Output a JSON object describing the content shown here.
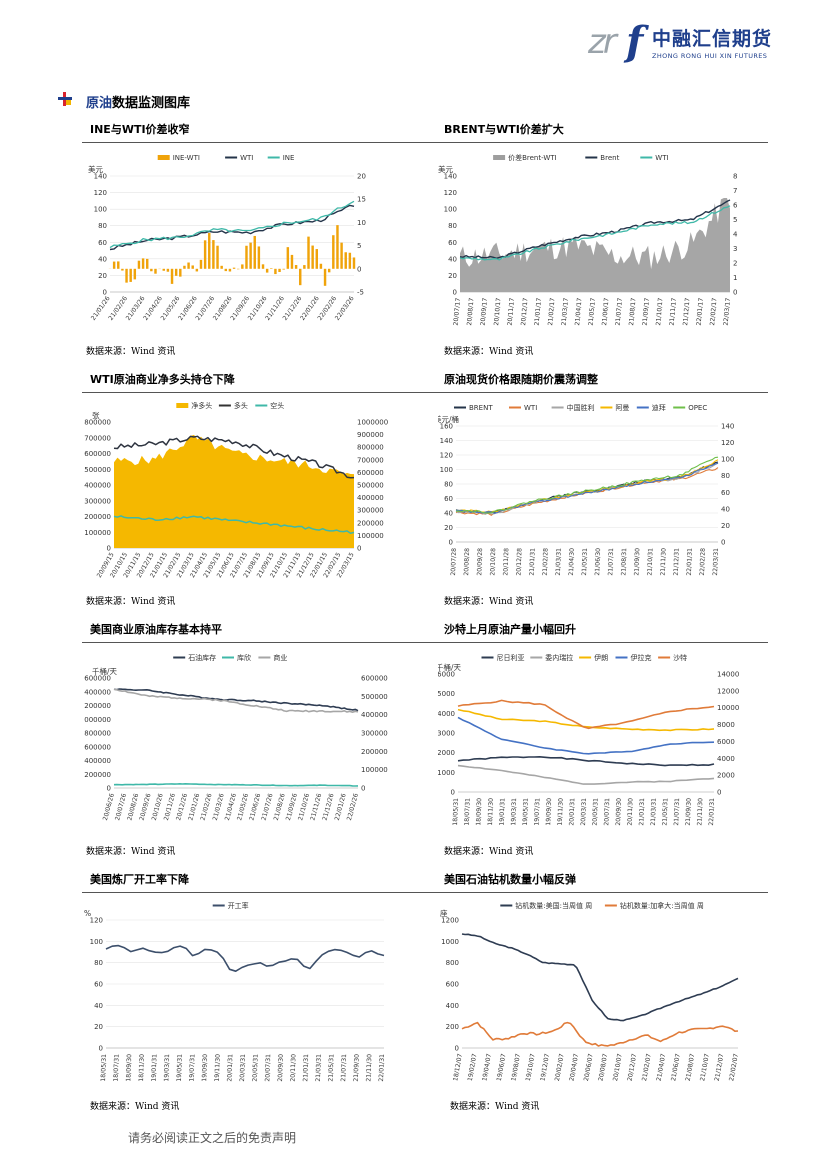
{
  "header": {
    "logo_latin": "zr",
    "logo_f": "f",
    "logo_cn": "中融汇信期货",
    "logo_en": "ZHONG RONG HUI XIN FUTURES"
  },
  "section": {
    "title_highlight": "原油",
    "title_rest": "数据监测图库"
  },
  "charts": {
    "c1": {
      "title": "INE与WTI价差收窄",
      "unit": "美元",
      "legend": [
        "INE-WTI",
        "WTI",
        "INE"
      ],
      "source": "数据来源：Wind 资讯",
      "yl": [
        "0",
        "20",
        "40",
        "60",
        "80",
        "100",
        "120",
        "140"
      ],
      "yr": [
        "-5",
        "0",
        "5",
        "10",
        "15",
        "20"
      ],
      "xt": [
        "21/01/26",
        "21/02/26",
        "21/03/26",
        "21/04/26",
        "21/05/26",
        "21/06/26",
        "21/07/26",
        "21/08/26",
        "21/09/26",
        "21/10/26",
        "21/11/26",
        "21/12/26",
        "22/01/26",
        "22/02/26",
        "22/03/26"
      ]
    },
    "c2": {
      "title": "BRENT与WTI价差扩大",
      "unit": "美元",
      "legend": [
        "价差Brent-WTI",
        "Brent",
        "WTI"
      ],
      "source": "数据来源：Wind 资讯",
      "yl": [
        "0",
        "20",
        "40",
        "60",
        "80",
        "100",
        "120",
        "140"
      ],
      "yr": [
        "0",
        "1",
        "2",
        "3",
        "4",
        "5",
        "6",
        "7",
        "8"
      ],
      "xt": [
        "20/07/17",
        "20/08/17",
        "20/09/17",
        "20/10/17",
        "20/11/17",
        "20/12/17",
        "21/01/17",
        "21/02/17",
        "21/03/17",
        "21/04/17",
        "21/05/17",
        "21/06/17",
        "21/07/17",
        "21/08/17",
        "21/09/17",
        "21/10/17",
        "21/11/17",
        "21/12/17",
        "22/01/17",
        "22/02/17",
        "22/03/17"
      ]
    },
    "c3": {
      "title": "WTI原油商业净多头持仓下降",
      "unit": "张",
      "legend": [
        "净多头",
        "多头",
        "空头"
      ],
      "source": "数据来源：Wind 资讯",
      "yl": [
        "0",
        "100000",
        "200000",
        "300000",
        "400000",
        "500000",
        "600000",
        "700000",
        "800000"
      ],
      "yr": [
        "0",
        "100000",
        "200000",
        "300000",
        "400000",
        "500000",
        "600000",
        "700000",
        "800000",
        "900000",
        "1000000"
      ],
      "xt": [
        "20/09/15",
        "20/10/15",
        "20/11/15",
        "20/12/15",
        "21/01/15",
        "21/02/15",
        "21/03/15",
        "21/04/15",
        "21/05/15",
        "21/06/15",
        "21/07/15",
        "21/08/15",
        "21/09/15",
        "21/10/15",
        "21/11/15",
        "21/12/15",
        "22/01/15",
        "22/02/15",
        "22/03/15"
      ]
    },
    "c4": {
      "title": "原油现货价格跟随期价震荡调整",
      "unit": "美元/桶",
      "legend": [
        "BRENT",
        "WTI",
        "中国胜利",
        "阿曼",
        "迪拜",
        "OPEC"
      ],
      "source": "数据来源：Wind 资讯",
      "yl": [
        "0",
        "20",
        "40",
        "60",
        "80",
        "100",
        "120",
        "140",
        "160"
      ],
      "yr": [
        "0",
        "20",
        "40",
        "60",
        "80",
        "100",
        "120",
        "140"
      ],
      "xt": [
        "20/07/28",
        "20/08/28",
        "20/09/28",
        "20/10/28",
        "20/11/28",
        "20/12/28",
        "21/01/31",
        "21/02/28",
        "21/03/31",
        "21/04/30",
        "21/05/31",
        "21/06/30",
        "21/07/31",
        "21/08/31",
        "21/09/30",
        "21/10/31",
        "21/11/30",
        "21/12/31",
        "22/01/31",
        "22/02/28",
        "22/03/31"
      ]
    },
    "c5": {
      "title": "美国商业原油库存基本持平",
      "unit": "千桶/天",
      "legend": [
        "石油库存",
        "库欣",
        "商业"
      ],
      "source": "数据来源：Wind 资讯",
      "yl": [
        "0",
        "200000",
        "400000",
        "600000",
        "800000",
        "1000000",
        "1200000",
        "1400000",
        "1600000"
      ],
      "yr": [
        "0",
        "100000",
        "200000",
        "300000",
        "400000",
        "500000",
        "600000"
      ],
      "xt": [
        "20/06/26",
        "20/07/26",
        "20/08/26",
        "20/09/26",
        "20/10/26",
        "20/11/26",
        "20/12/26",
        "21/01/26",
        "21/02/26",
        "21/03/26",
        "21/04/26",
        "21/05/26",
        "21/06/26",
        "21/07/26",
        "21/08/26",
        "21/09/26",
        "21/10/26",
        "21/11/26",
        "21/12/26",
        "22/01/26",
        "22/02/26"
      ]
    },
    "c6": {
      "title": "沙特上月原油产量小幅回升",
      "unit": "千桶/天",
      "legend": [
        "尼日利亚",
        "委内瑞拉",
        "伊朗",
        "伊拉克",
        "沙特"
      ],
      "source": "数据来源：Wind 资讯",
      "yl": [
        "0",
        "1000",
        "2000",
        "3000",
        "4000",
        "5000",
        "6000"
      ],
      "yr": [
        "0",
        "2000",
        "4000",
        "6000",
        "8000",
        "10000",
        "12000",
        "14000"
      ],
      "xt": [
        "18/05/31",
        "18/07/31",
        "18/09/30",
        "18/11/30",
        "19/01/31",
        "19/03/31",
        "19/05/31",
        "19/07/31",
        "19/09/30",
        "19/11/30",
        "20/01/31",
        "20/03/31",
        "20/05/31",
        "20/07/31",
        "20/09/30",
        "20/11/30",
        "21/01/31",
        "21/03/31",
        "21/05/31",
        "21/07/31",
        "21/09/30",
        "21/11/30",
        "22/01/31"
      ]
    },
    "c7": {
      "title": "美国炼厂开工率下降",
      "unit": "%",
      "legend": [
        "开工率"
      ],
      "source": "数据来源：Wind 资讯",
      "yl": [
        "0",
        "20",
        "40",
        "60",
        "80",
        "100",
        "120"
      ],
      "xt": [
        "18/05/31",
        "18/07/31",
        "18/09/30",
        "18/11/30",
        "19/01/31",
        "19/03/31",
        "19/05/31",
        "19/07/31",
        "19/09/30",
        "19/11/30",
        "20/01/31",
        "20/03/31",
        "20/05/31",
        "20/07/31",
        "20/09/30",
        "20/11/30",
        "21/01/31",
        "21/03/31",
        "21/05/31",
        "21/07/31",
        "21/09/30",
        "21/11/30",
        "22/01/31"
      ]
    },
    "c8": {
      "title": "美国石油钻机数量小幅反弹",
      "unit": "座",
      "legend": [
        "钻机数量:美国:当周值 周",
        "钻机数量:加拿大:当周值 周"
      ],
      "source": "数据来源：Wind 资讯",
      "yl": [
        "0",
        "200",
        "400",
        "600",
        "800",
        "1000",
        "1200"
      ],
      "xt": [
        "18/12/07",
        "19/02/07",
        "19/04/07",
        "19/06/07",
        "19/08/07",
        "19/10/07",
        "19/12/07",
        "20/02/07",
        "20/04/07",
        "20/06/07",
        "20/08/07",
        "20/10/07",
        "20/12/07",
        "21/02/07",
        "21/04/07",
        "21/06/07",
        "21/08/07",
        "21/10/07",
        "21/12/07",
        "22/02/07"
      ]
    }
  },
  "footer": "请务必阅读正文之后的免责声明",
  "chart_data": [
    {
      "type": "line",
      "title": "INE与WTI价差收窄",
      "ylabel": "美元",
      "ylim": [
        0,
        140
      ],
      "y2lim": [
        -5,
        20
      ],
      "x": [
        "21/01/26",
        "21/03/26",
        "21/05/26",
        "21/07/26",
        "21/09/26",
        "21/11/26",
        "22/01/26",
        "22/03/26"
      ],
      "series": [
        {
          "name": "WTI",
          "values": [
            52,
            62,
            66,
            73,
            72,
            82,
            86,
            105
          ]
        },
        {
          "name": "INE",
          "values": [
            54,
            63,
            66,
            75,
            73,
            83,
            88,
            110
          ]
        },
        {
          "name": "INE-WTI",
          "values": [
            2,
            1,
            -1,
            3,
            1,
            8,
            0,
            6
          ]
        }
      ]
    },
    {
      "type": "area",
      "title": "BRENT与WTI价差扩大",
      "ylabel": "美元",
      "ylim": [
        0,
        140
      ],
      "y2lim": [
        0,
        8
      ],
      "x": [
        "20/07/17",
        "20/10/17",
        "21/01/17",
        "21/04/17",
        "21/07/17",
        "21/10/17",
        "22/01/17",
        "22/03/17"
      ],
      "series": [
        {
          "name": "Brent",
          "values": [
            43,
            41,
            55,
            66,
            73,
            84,
            87,
            110
          ]
        },
        {
          "name": "WTI",
          "values": [
            41,
            39,
            52,
            63,
            71,
            82,
            84,
            104
          ]
        },
        {
          "name": "价差Brent-WTI",
          "values": [
            2.4,
            2.6,
            3.0,
            3.2,
            2.5,
            2.4,
            3.3,
            6.5
          ]
        }
      ]
    },
    {
      "type": "area",
      "title": "WTI原油商业净多头持仓下降",
      "ylabel": "张",
      "ylim": [
        0,
        800000
      ],
      "y2lim": [
        0,
        1000000
      ],
      "x": [
        "20/09/15",
        "20/12/15",
        "21/03/15",
        "21/06/15",
        "21/09/15",
        "21/12/15",
        "22/03/15"
      ],
      "series": [
        {
          "name": "多头",
          "values": [
            640000,
            660000,
            700000,
            680000,
            600000,
            540000,
            450000
          ]
        },
        {
          "name": "空头",
          "values": [
            200000,
            180000,
            200000,
            170000,
            150000,
            120000,
            100000
          ]
        },
        {
          "name": "净多头",
          "values": [
            550000,
            560000,
            700000,
            600000,
            560000,
            520000,
            450000
          ]
        }
      ]
    },
    {
      "type": "line",
      "title": "原油现货价格跟随期价震荡调整",
      "ylabel": "美元/桶",
      "ylim": [
        0,
        160
      ],
      "y2lim": [
        0,
        140
      ],
      "x": [
        "20/07/28",
        "20/10/28",
        "21/01/31",
        "21/04/30",
        "21/07/31",
        "21/10/31",
        "22/01/31",
        "22/03/31"
      ],
      "series": [
        {
          "name": "BRENT",
          "values": [
            43,
            40,
            55,
            66,
            74,
            84,
            90,
            110
          ]
        },
        {
          "name": "WTI",
          "values": [
            41,
            38,
            52,
            63,
            72,
            82,
            87,
            102
          ]
        },
        {
          "name": "中国胜利",
          "values": [
            42,
            39,
            54,
            64,
            72,
            82,
            88,
            108
          ]
        },
        {
          "name": "阿曼",
          "values": [
            44,
            41,
            55,
            64,
            73,
            83,
            89,
            112
          ]
        },
        {
          "name": "迪拜",
          "values": [
            43,
            40,
            54,
            63,
            72,
            82,
            88,
            110
          ]
        },
        {
          "name": "OPEC",
          "values": [
            44,
            41,
            56,
            66,
            75,
            85,
            92,
            118
          ]
        }
      ]
    },
    {
      "type": "line",
      "title": "美国商业原油库存基本持平",
      "ylabel": "千桶/天",
      "ylim": [
        0,
        1600000
      ],
      "y2lim": [
        0,
        600000
      ],
      "x": [
        "20/06/26",
        "20/09/26",
        "20/12/26",
        "21/03/26",
        "21/06/26",
        "21/09/26",
        "21/12/26",
        "22/02/26"
      ],
      "series": [
        {
          "name": "石油库存",
          "values": [
            1440000,
            1420000,
            1350000,
            1290000,
            1270000,
            1230000,
            1200000,
            1130000
          ]
        },
        {
          "name": "库欣",
          "values": [
            48000,
            52000,
            60000,
            50000,
            45000,
            35000,
            40000,
            30000
          ]
        },
        {
          "name": "商业",
          "values": [
            540000,
            500000,
            490000,
            480000,
            450000,
            420000,
            420000,
            415000
          ]
        }
      ]
    },
    {
      "type": "line",
      "title": "沙特上月原油产量小幅回升",
      "ylabel": "千桶/天",
      "ylim": [
        0,
        6000
      ],
      "y2lim": [
        0,
        14000
      ],
      "x": [
        "18/05/31",
        "19/01/31",
        "19/09/30",
        "20/05/31",
        "21/01/31",
        "21/09/30",
        "22/01/31"
      ],
      "series": [
        {
          "name": "尼日利亚",
          "values": [
            1600,
            1750,
            1800,
            1600,
            1450,
            1350,
            1400
          ]
        },
        {
          "name": "委内瑞拉",
          "values": [
            1350,
            1100,
            750,
            400,
            500,
            550,
            700
          ]
        },
        {
          "name": "伊朗",
          "values": [
            4200,
            3700,
            3600,
            3300,
            3200,
            3150,
            3200
          ]
        },
        {
          "name": "伊拉克",
          "values": [
            3800,
            2700,
            2250,
            1950,
            2050,
            2450,
            2550
          ]
        },
        {
          "name": "沙特",
          "values": [
            10200,
            10800,
            10400,
            7500,
            8300,
            9600,
            10150
          ]
        }
      ]
    },
    {
      "type": "line",
      "title": "美国炼厂开工率下降",
      "ylabel": "%",
      "ylim": [
        0,
        120
      ],
      "x": [
        "18/05/31",
        "19/01/31",
        "19/09/30",
        "20/05/31",
        "21/01/31",
        "21/09/30",
        "22/01/31"
      ],
      "series": [
        {
          "name": "开工率",
          "values": [
            93,
            90,
            91,
            70,
            82,
            88,
            87
          ]
        }
      ]
    },
    {
      "type": "line",
      "title": "美国石油钻机数量小幅反弹",
      "ylabel": "座",
      "ylim": [
        0,
        1200
      ],
      "x": [
        "18/12/07",
        "19/06/07",
        "19/12/07",
        "20/06/07",
        "20/12/07",
        "21/06/07",
        "21/12/07",
        "22/02/07"
      ],
      "series": [
        {
          "name": "钻机数量:美国:当周值 周",
          "values": [
            1070,
            970,
            800,
            280,
            320,
            470,
            580,
            650
          ]
        },
        {
          "name": "钻机数量:加拿大:当周值 周",
          "values": [
            180,
            90,
            130,
            20,
            90,
            140,
            180,
            150
          ]
        }
      ]
    }
  ]
}
